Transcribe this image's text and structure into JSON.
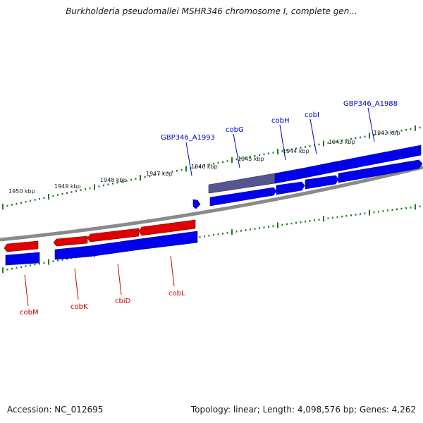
{
  "title": "Burkholderia pseudomallei MSHR346 chromosome I, complete gen...",
  "footer": {
    "accession": "Accession: NC_012695",
    "summary": "Topology: linear; Length: 4,098,576 bp; Genes: 4,262"
  },
  "colors": {
    "forward_gene": "#0000ee",
    "reverse_gene": "#e00000",
    "highlighted_gene": "#55558f",
    "forward_label": "#0000cc",
    "reverse_label": "#cc0000",
    "ruler": "#1f7a1f",
    "backbone": "#8a8a8a"
  },
  "ruler_labels": [
    "1950 kbp",
    "1949 kbp",
    "1948 kbp",
    "1947 kbp",
    "1946 kbp",
    "1945 kbp",
    "1944 kbp",
    "1943 kbp",
    "1942 kbp"
  ],
  "forward_labels": [
    "GBP346_A1993",
    "cobG",
    "cobH",
    "cobI",
    "GBP346_A1988"
  ],
  "reverse_labels": [
    "cobM",
    "cobK",
    "cbiD",
    "cobL"
  ]
}
